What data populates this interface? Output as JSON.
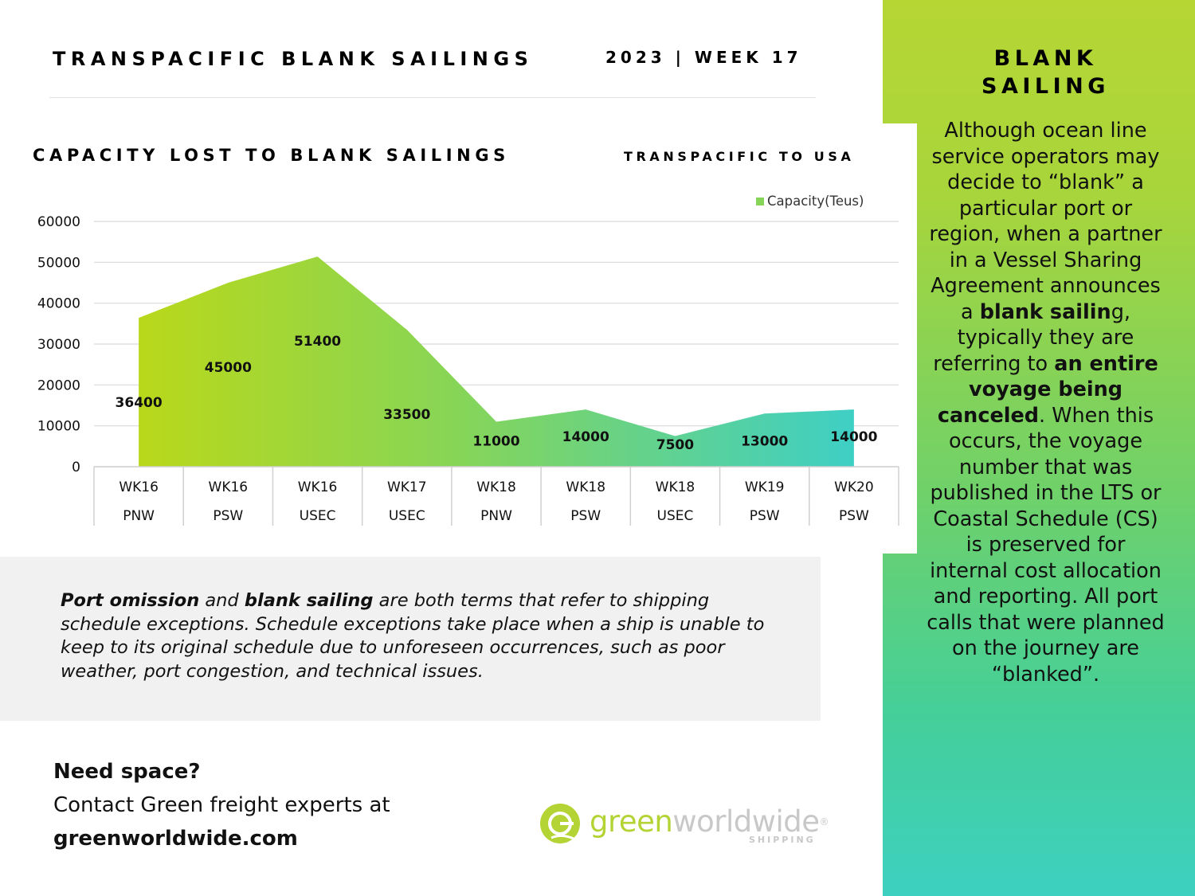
{
  "header": {
    "title": "TRANSPACIFIC BLANK SAILINGS",
    "week": "2023 | WEEK 17"
  },
  "sidebar": {
    "title_line1": "BLANK",
    "title_line2": "SAILING",
    "body": [
      {
        "t": "Although ocean line service operators may decide to “blank” a particular port or region, when a partner in a Vessel Sharing Agreement announces a ",
        "b": false
      },
      {
        "t": "blank sailin",
        "b": true
      },
      {
        "t": "g, typically they are referring to ",
        "b": false
      },
      {
        "t": "an entire voyage being canceled",
        "b": true
      },
      {
        "t": ". When this occurs, the voyage number that was published in the LTS or Coastal Schedule (CS) is preserved for internal cost allocation and reporting. All port calls that were planned on the journey are “blanked”.",
        "b": false
      }
    ]
  },
  "chart_section": {
    "heading": "CAPACITY LOST TO BLANK SAILINGS",
    "subheading": "TRANSPACIFIC TO USA"
  },
  "chart_data": {
    "type": "area",
    "categories": [
      [
        "WK16",
        "PNW"
      ],
      [
        "WK16",
        "PSW"
      ],
      [
        "WK16",
        "USEC"
      ],
      [
        "WK17",
        "USEC"
      ],
      [
        "WK18",
        "PNW"
      ],
      [
        "WK18",
        "PSW"
      ],
      [
        "WK18",
        "USEC"
      ],
      [
        "WK19",
        "PSW"
      ],
      [
        "WK20",
        "PSW"
      ]
    ],
    "series": [
      {
        "name": "Capacity(Teus)",
        "values": [
          36400,
          45000,
          51400,
          33500,
          11000,
          14000,
          7500,
          13000,
          14000
        ]
      }
    ],
    "ylim": [
      0,
      60000
    ],
    "yticks": [
      0,
      10000,
      20000,
      30000,
      40000,
      50000,
      60000
    ],
    "grid": true,
    "legend": "top-right",
    "colors": {
      "start": "#b9d81a",
      "mid": "#86d558",
      "end": "#3ecfc5"
    }
  },
  "info": {
    "text": [
      {
        "t": "Port omission",
        "b": true
      },
      {
        "t": " and ",
        "b": false
      },
      {
        "t": "blank sailing",
        "b": true
      },
      {
        "t": " are both terms that refer to shipping schedule exceptions. Schedule exceptions take place when a ship is unable to keep to its original schedule due to unforeseen occurrences, such as poor weather, port congestion, and technical issues.",
        "b": false
      }
    ]
  },
  "contact": {
    "line1": "Need space?",
    "line2": "Contact Green freight experts at",
    "line3": "greenworldwide.com"
  },
  "logo": {
    "part1": "green",
    "part2": "worldwide",
    "reg": "®",
    "sub": "SHIPPING"
  }
}
